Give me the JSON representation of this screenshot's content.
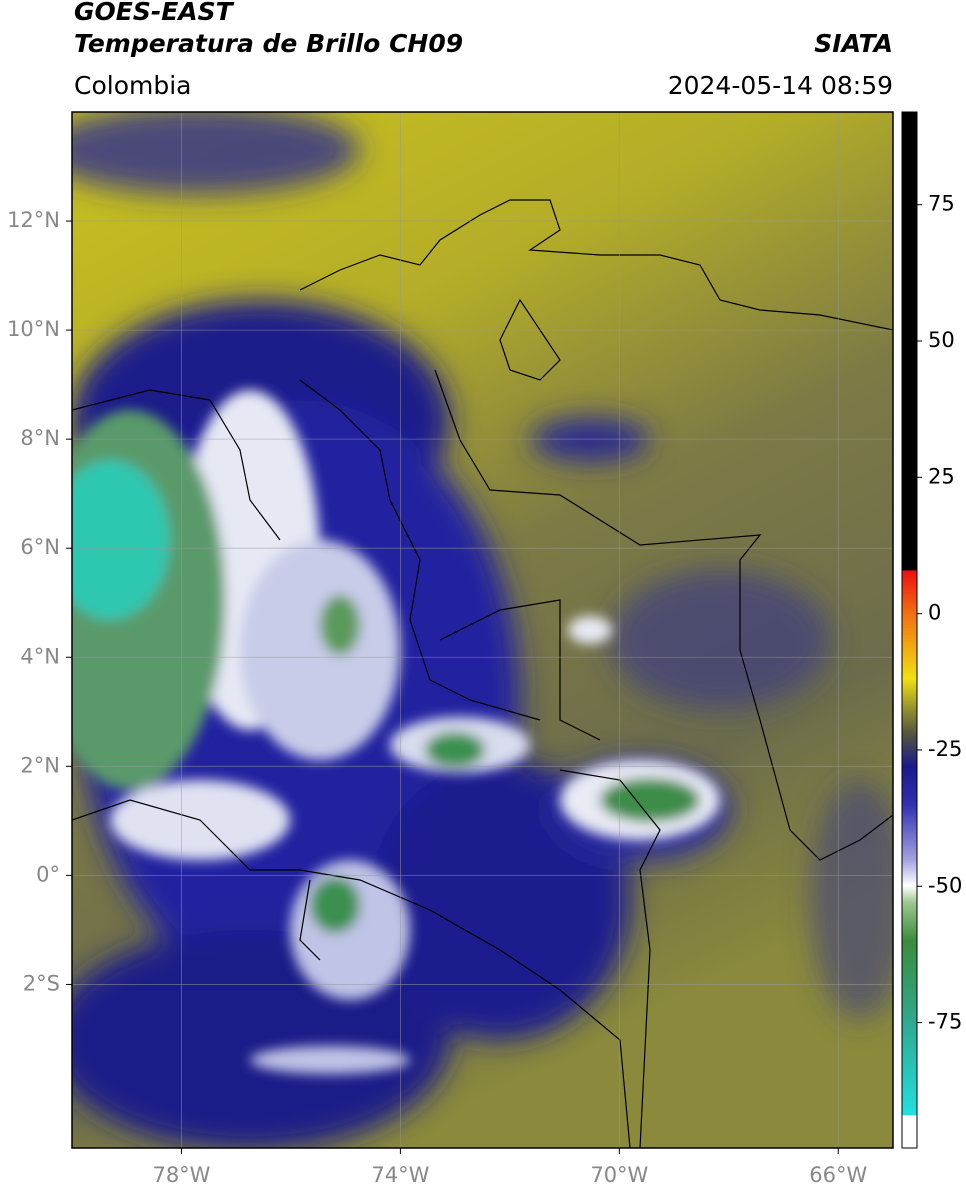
{
  "header": {
    "line1": "GOES-EAST",
    "line2": "Temperatura de Brillo CH09",
    "source": "SIATA",
    "region": "Colombia",
    "datetime": "2024-05-14 08:59"
  },
  "map": {
    "xlim": [
      -80,
      -65
    ],
    "ylim": [
      -5,
      14
    ],
    "xticks": [
      {
        "value": -78,
        "label": "78°W"
      },
      {
        "value": -74,
        "label": "74°W"
      },
      {
        "value": -70,
        "label": "70°W"
      },
      {
        "value": -66,
        "label": "66°W"
      }
    ],
    "yticks": [
      {
        "value": 12,
        "label": "12°N"
      },
      {
        "value": 10,
        "label": "10°N"
      },
      {
        "value": 8,
        "label": "8°N"
      },
      {
        "value": 6,
        "label": "6°N"
      },
      {
        "value": 4,
        "label": "4°N"
      },
      {
        "value": 2,
        "label": "2°N"
      },
      {
        "value": 0,
        "label": "0°"
      },
      {
        "value": -2,
        "label": "2°S"
      }
    ],
    "grid": true
  },
  "colorbar": {
    "lim": [
      -98,
      92
    ],
    "ticks": [
      75,
      50,
      25,
      0,
      -25,
      -50,
      -75
    ]
  }
}
